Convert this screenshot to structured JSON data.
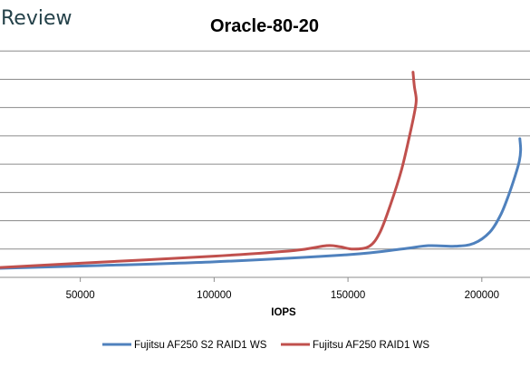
{
  "brand": {
    "label": "Review"
  },
  "chart_data": {
    "type": "line",
    "title": "Oracle-80-20",
    "xlabel": "IOPS",
    "ylabel": "",
    "xlim": [
      20000,
      218000
    ],
    "ylim": [
      0,
      9
    ],
    "x_ticks": [
      50000,
      100000,
      150000,
      200000
    ],
    "x_tick_labels": [
      "50000",
      "100000",
      "150000",
      "200000"
    ],
    "y_gridlines": [
      1,
      2,
      3,
      4,
      5,
      6,
      7,
      8
    ],
    "grid": "horizontal",
    "legend_position": "bottom",
    "series": [
      {
        "name": "Fujitsu AF250 S2 RAID1 WS",
        "color": "#4f81bd",
        "points": [
          [
            20000,
            0.32
          ],
          [
            50000,
            0.4
          ],
          [
            100000,
            0.55
          ],
          [
            150000,
            0.8
          ],
          [
            170000,
            1.0
          ],
          [
            180000,
            1.12
          ],
          [
            190000,
            1.1
          ],
          [
            197000,
            1.2
          ],
          [
            203000,
            1.6
          ],
          [
            207000,
            2.2
          ],
          [
            210000,
            2.9
          ],
          [
            212500,
            3.6
          ],
          [
            214000,
            4.1
          ],
          [
            214500,
            4.5
          ],
          [
            214200,
            4.9
          ]
        ]
      },
      {
        "name": "Fujitsu AF250 RAID1 WS",
        "color": "#c0504d",
        "points": [
          [
            20000,
            0.35
          ],
          [
            50000,
            0.5
          ],
          [
            100000,
            0.75
          ],
          [
            130000,
            0.95
          ],
          [
            142000,
            1.12
          ],
          [
            147000,
            1.08
          ],
          [
            152000,
            1.0
          ],
          [
            158000,
            1.1
          ],
          [
            162000,
            1.6
          ],
          [
            166000,
            2.6
          ],
          [
            170000,
            3.8
          ],
          [
            173000,
            5.0
          ],
          [
            175000,
            5.9
          ],
          [
            175500,
            6.3
          ],
          [
            174800,
            6.75
          ],
          [
            174300,
            7.25
          ]
        ]
      }
    ]
  }
}
